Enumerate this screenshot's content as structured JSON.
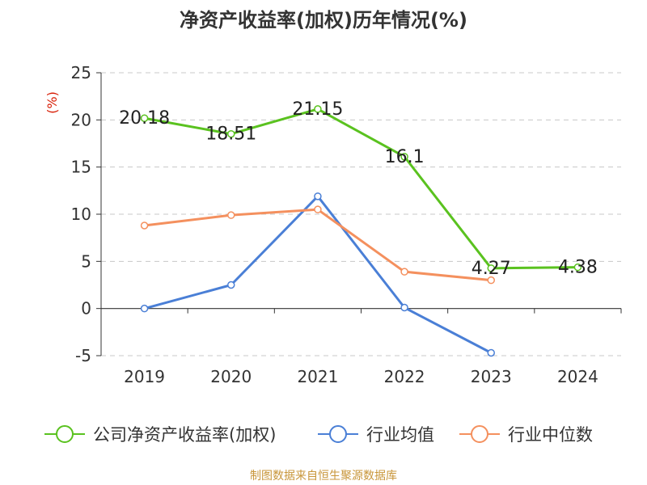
{
  "chart_data": {
    "type": "line",
    "title": "净资产收益率(加权)历年情况(%)",
    "ylabel": "(%)",
    "categories": [
      "2019",
      "2020",
      "2021",
      "2022",
      "2023",
      "2024"
    ],
    "ylim": [
      -5,
      25
    ],
    "yticks": [
      -5,
      0,
      5,
      10,
      15,
      20,
      25
    ],
    "grid": true,
    "legend_position": "bottom",
    "series": [
      {
        "name": "公司净资产收益率(加权)",
        "color": "#5ac21f",
        "values": [
          20.18,
          18.51,
          21.15,
          16.1,
          4.27,
          4.38
        ],
        "labels": [
          "20.18",
          "18.51",
          "21.15",
          "16.1",
          "4.27",
          "4.38"
        ]
      },
      {
        "name": "行业均值",
        "color": "#4a7fd6",
        "values": [
          0.0,
          2.5,
          11.9,
          0.1,
          -4.7,
          null
        ]
      },
      {
        "name": "行业中位数",
        "color": "#f4905e",
        "values": [
          8.8,
          9.9,
          10.5,
          3.9,
          3.0,
          null
        ]
      }
    ]
  },
  "source": "制图数据来自恒生聚源数据库"
}
